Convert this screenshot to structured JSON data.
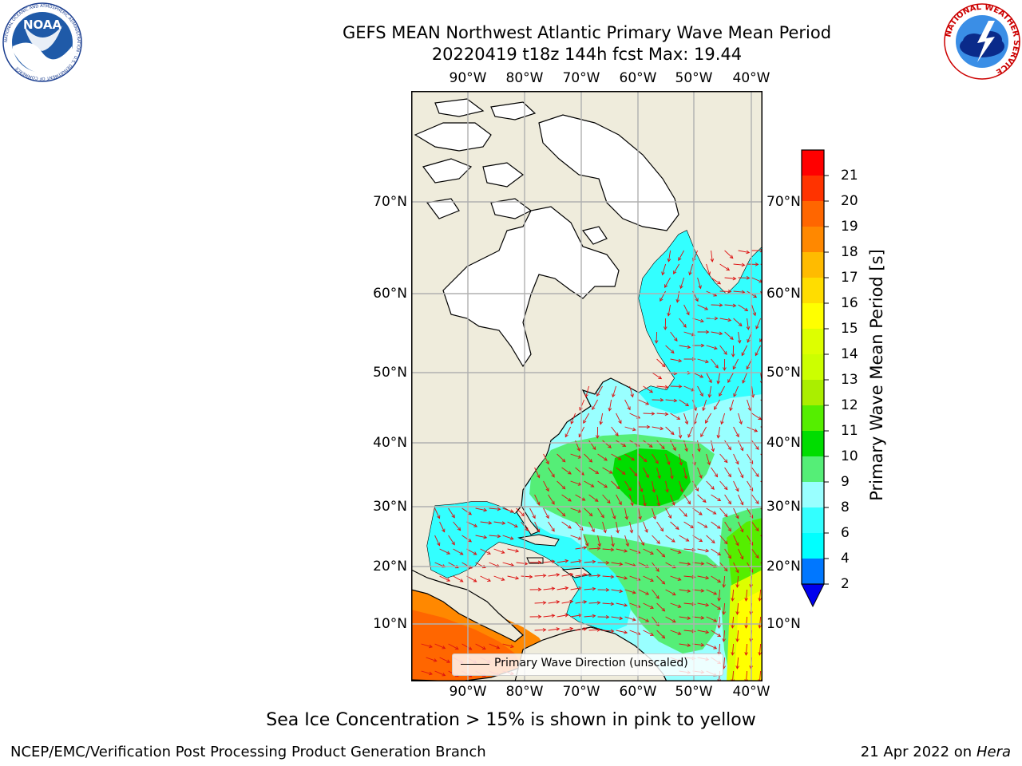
{
  "header": {
    "title_line1": "GEFS MEAN Northwest Atlantic Primary Wave Mean Period",
    "title_line2": "20220419 t18z 144h fcst   Max: 19.44"
  },
  "logos": {
    "noaa": {
      "text": "NOAA",
      "ring_text": "NATIONAL OCEANIC AND ATMOSPHERIC ADMINISTRATION · U.S. DEPARTMENT OF COMMERCE"
    },
    "nws": {
      "ring_text": "NATIONAL WEATHER SERVICE"
    }
  },
  "map": {
    "lon_labels": [
      "90°W",
      "80°W",
      "70°W",
      "60°W",
      "50°W",
      "40°W"
    ],
    "lon_values": [
      -90,
      -80,
      -70,
      -60,
      -50,
      -40
    ],
    "lat_labels": [
      "70°N",
      "60°N",
      "50°N",
      "40°N",
      "30°N",
      "20°N",
      "10°N"
    ],
    "lat_values": [
      70,
      60,
      50,
      40,
      30,
      20,
      10
    ],
    "land_color": "#efecdc",
    "ice_color": "#ffffff",
    "grid": true
  },
  "legend": {
    "label": "Primary Wave Direction (unscaled)"
  },
  "colorbar": {
    "label": "Primary Wave Mean Period [s]",
    "ticks": [
      "2",
      "4",
      "6",
      "8",
      "9",
      "10",
      "11",
      "12",
      "13",
      "14",
      "15",
      "16",
      "17",
      "18",
      "19",
      "20",
      "21"
    ],
    "colors": [
      "#0077ff",
      "#00ffff",
      "#33ffff",
      "#99ffff",
      "#55ee77",
      "#00dd00",
      "#55ee00",
      "#aaee00",
      "#ccff00",
      "#ddff00",
      "#ffff00",
      "#ffdd00",
      "#ffbb00",
      "#ff8800",
      "#ff6600",
      "#ff3300",
      "#ff0000"
    ],
    "extend_color": "#0000ee"
  },
  "footer": {
    "note": "Sea Ice Concentration > 15% is shown in pink to yellow",
    "credit": "NCEP/EMC/Verification Post Processing Product Generation Branch",
    "date": "21 Apr 2022 on ",
    "host": "Hera"
  }
}
